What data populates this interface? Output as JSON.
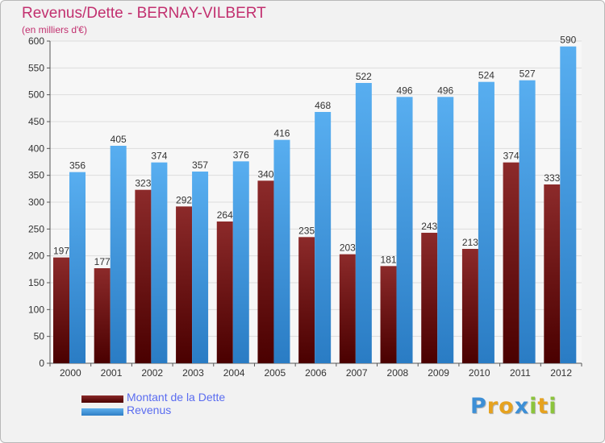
{
  "header": {
    "title": "Revenus/Dette - BERNAY-VILBERT",
    "subtitle": "(en milliers d'€)"
  },
  "logo": {
    "text": "Proxiti",
    "letters": [
      {
        "ch": "P",
        "color": "#3d8fd6"
      },
      {
        "ch": "r",
        "color": "#e6a21f"
      },
      {
        "ch": "o",
        "color": "#e6a21f"
      },
      {
        "ch": "x",
        "color": "#3d8fd6"
      },
      {
        "ch": "i",
        "color": "#8cc43c"
      },
      {
        "ch": "t",
        "color": "#e6a21f"
      },
      {
        "ch": "i",
        "color": "#8cc43c"
      }
    ]
  },
  "chart_data": {
    "type": "bar",
    "title": "Revenus/Dette - BERNAY-VILBERT",
    "subtitle": "(en milliers d'€)",
    "categories": [
      "2000",
      "2001",
      "2002",
      "2003",
      "2004",
      "2005",
      "2006",
      "2007",
      "2008",
      "2009",
      "2010",
      "2011",
      "2012"
    ],
    "series": [
      {
        "name": "Montant de la Dette",
        "color": "#7a1a1a",
        "values": [
          197,
          177,
          323,
          292,
          264,
          340,
          235,
          203,
          181,
          243,
          213,
          374,
          333
        ]
      },
      {
        "name": "Revenus",
        "color": "#3f97dd",
        "values": [
          356,
          405,
          374,
          357,
          376,
          416,
          468,
          522,
          496,
          496,
          524,
          527,
          590
        ]
      }
    ],
    "ylim": [
      0,
      600
    ],
    "yticks": [
      0,
      50,
      100,
      150,
      200,
      250,
      300,
      350,
      400,
      450,
      500,
      550,
      600
    ],
    "grid": true,
    "legend": "bottom-left",
    "xlabel": "",
    "ylabel": ""
  }
}
